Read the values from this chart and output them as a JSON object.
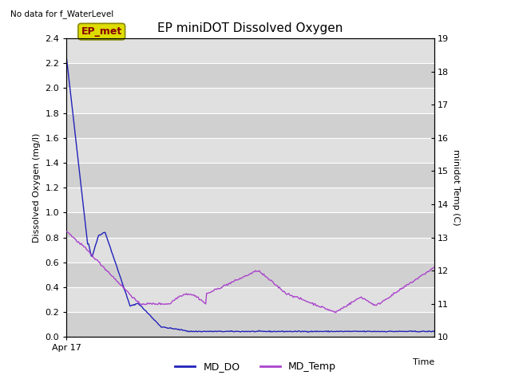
{
  "title": "EP miniDOT Dissolved Oxygen",
  "top_left_text": "No data for f_WaterLevel",
  "xlabel": "Time",
  "ylabel_left": "Dissolved Oxygen (mg/l)",
  "ylabel_right": "minidot Temp (C)",
  "ylim_left": [
    0.0,
    2.4
  ],
  "ylim_right": [
    10.0,
    19.0
  ],
  "yticks_left": [
    0.0,
    0.2,
    0.4,
    0.6,
    0.8,
    1.0,
    1.2,
    1.4,
    1.6,
    1.8,
    2.0,
    2.2,
    2.4
  ],
  "yticks_right": [
    10.0,
    11.0,
    12.0,
    13.0,
    14.0,
    15.0,
    16.0,
    17.0,
    18.0,
    19.0
  ],
  "xtick_label": "Apr 17",
  "legend_label_do": "MD_DO",
  "legend_label_temp": "MD_Temp",
  "color_do": "#2222bb",
  "color_temp": "#aa44cc",
  "legend_box_facecolor": "#dddd00",
  "legend_box_edgecolor": "#888800",
  "legend_box_text": "EP_met",
  "legend_box_text_color": "#880000",
  "plot_bg_color": "#d8d8d8",
  "grid_color": "#ffffff",
  "fig_bg_color": "#ffffff",
  "band_colors": [
    "#d0d0d0",
    "#e0e0e0"
  ]
}
